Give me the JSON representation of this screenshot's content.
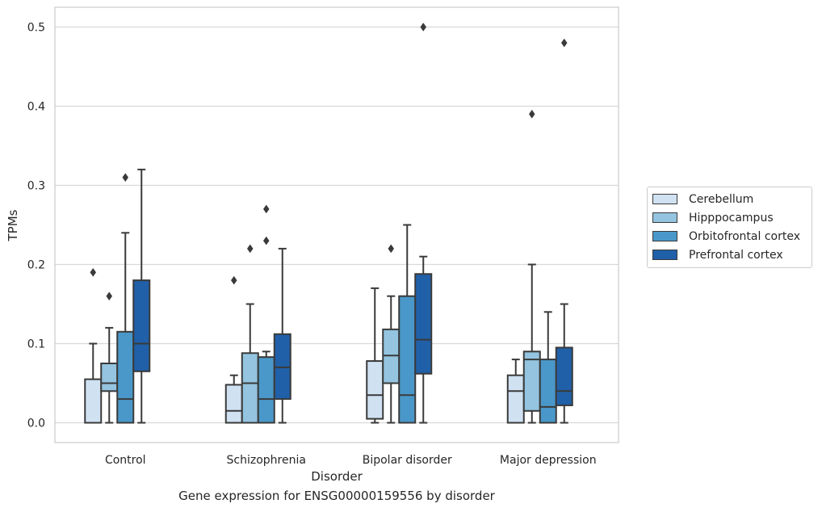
{
  "caption": "Gene expression for ENSG00000159556 by disorder",
  "chart_data": {
    "type": "box",
    "xlabel": "Disorder",
    "ylabel": "TPMs",
    "categories": [
      "Control",
      "Schizophrenia",
      "Bipolar disorder",
      "Major depression"
    ],
    "yticks": [
      "0.0",
      "0.1",
      "0.2",
      "0.3",
      "0.4",
      "0.5"
    ],
    "ylim": [
      -0.025,
      0.525
    ],
    "grid": true,
    "legend_position": "right",
    "series": [
      {
        "name": "Cerebellum",
        "color": "#d0e1f2",
        "boxes": [
          {
            "whisker_low": 0.0,
            "q1": 0.0,
            "median": 0.0,
            "q3": 0.055,
            "whisker_high": 0.1,
            "outliers": [
              0.19
            ]
          },
          {
            "whisker_low": 0.0,
            "q1": 0.0,
            "median": 0.015,
            "q3": 0.048,
            "whisker_high": 0.06,
            "outliers": [
              0.18
            ]
          },
          {
            "whisker_low": 0.0,
            "q1": 0.005,
            "median": 0.035,
            "q3": 0.078,
            "whisker_high": 0.17,
            "outliers": []
          },
          {
            "whisker_low": 0.0,
            "q1": 0.0,
            "median": 0.04,
            "q3": 0.06,
            "whisker_high": 0.08,
            "outliers": []
          }
        ]
      },
      {
        "name": "Hipppocampus",
        "color": "#94c4df",
        "boxes": [
          {
            "whisker_low": 0.0,
            "q1": 0.04,
            "median": 0.05,
            "q3": 0.075,
            "whisker_high": 0.12,
            "outliers": [
              0.16
            ]
          },
          {
            "whisker_low": 0.0,
            "q1": 0.0,
            "median": 0.05,
            "q3": 0.088,
            "whisker_high": 0.15,
            "outliers": [
              0.22
            ]
          },
          {
            "whisker_low": 0.0,
            "q1": 0.05,
            "median": 0.085,
            "q3": 0.118,
            "whisker_high": 0.16,
            "outliers": [
              0.22
            ]
          },
          {
            "whisker_low": 0.0,
            "q1": 0.015,
            "median": 0.08,
            "q3": 0.09,
            "whisker_high": 0.2,
            "outliers": [
              0.39
            ]
          }
        ]
      },
      {
        "name": "Orbitofrontal cortex",
        "color": "#4a98c9",
        "boxes": [
          {
            "whisker_low": 0.0,
            "q1": 0.0,
            "median": 0.03,
            "q3": 0.115,
            "whisker_high": 0.24,
            "outliers": [
              0.31
            ]
          },
          {
            "whisker_low": 0.0,
            "q1": 0.0,
            "median": 0.03,
            "q3": 0.083,
            "whisker_high": 0.09,
            "outliers": [
              0.23,
              0.27
            ]
          },
          {
            "whisker_low": 0.0,
            "q1": 0.0,
            "median": 0.035,
            "q3": 0.16,
            "whisker_high": 0.25,
            "outliers": []
          },
          {
            "whisker_low": 0.0,
            "q1": 0.0,
            "median": 0.02,
            "q3": 0.08,
            "whisker_high": 0.14,
            "outliers": []
          }
        ]
      },
      {
        "name": "Prefrontal cortex",
        "color": "#2060a8",
        "boxes": [
          {
            "whisker_low": 0.0,
            "q1": 0.065,
            "median": 0.1,
            "q3": 0.18,
            "whisker_high": 0.32,
            "outliers": []
          },
          {
            "whisker_low": 0.0,
            "q1": 0.03,
            "median": 0.07,
            "q3": 0.112,
            "whisker_high": 0.22,
            "outliers": []
          },
          {
            "whisker_low": 0.0,
            "q1": 0.062,
            "median": 0.105,
            "q3": 0.188,
            "whisker_high": 0.21,
            "outliers": [
              0.5
            ]
          },
          {
            "whisker_low": 0.0,
            "q1": 0.022,
            "median": 0.04,
            "q3": 0.095,
            "whisker_high": 0.15,
            "outliers": [
              0.48
            ]
          }
        ]
      }
    ]
  }
}
